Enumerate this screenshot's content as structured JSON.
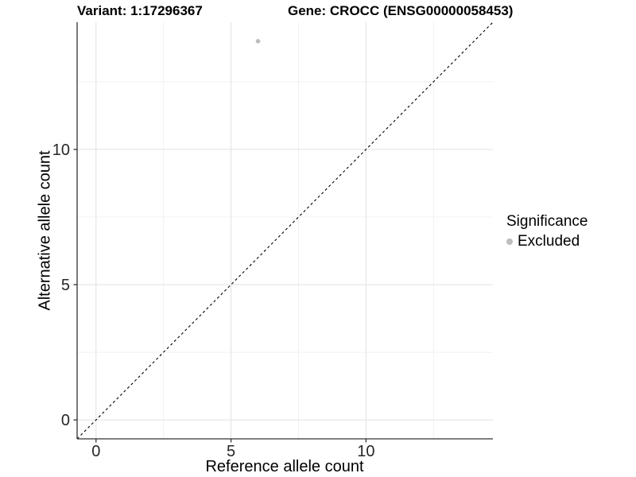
{
  "title": {
    "variant": "Variant: 1:17296367",
    "gene": "Gene: CROCC (ENSG00000058453)"
  },
  "axes": {
    "x_label": "Reference allele count",
    "y_label": "Alternative allele count"
  },
  "legend": {
    "title": "Significance",
    "items": [
      {
        "label": "Excluded",
        "color": "#bdbdbd"
      }
    ]
  },
  "colors": {
    "background": "#ffffff",
    "grid_major": "#e4e4e4",
    "grid_minor": "#f0f0f0",
    "axis_line": "#333333",
    "tick_label": "#262626",
    "reference_line": "#000000",
    "point": "#bdbdbd"
  },
  "chart_data": {
    "type": "scatter",
    "title": "Variant: 1:17296367   Gene: CROCC (ENSG00000058453)",
    "xlabel": "Reference allele count",
    "ylabel": "Alternative allele count",
    "xlim": [
      -0.7,
      14.7
    ],
    "ylim": [
      -0.7,
      14.7
    ],
    "x_major_ticks": [
      0,
      5,
      10
    ],
    "y_major_ticks": [
      0,
      5,
      10
    ],
    "x_minor_ticks": [
      2.5,
      7.5,
      12.5
    ],
    "y_minor_ticks": [
      2.5,
      7.5,
      12.5
    ],
    "grid": true,
    "legend_position": "right",
    "series": [
      {
        "name": "Excluded",
        "color": "#bdbdbd",
        "points": [
          {
            "x": 6,
            "y": 14
          }
        ]
      }
    ],
    "reference_line": {
      "type": "identity",
      "style": "dashed",
      "from": [
        -0.7,
        -0.7
      ],
      "to": [
        14.7,
        14.7
      ],
      "color": "#000000"
    }
  }
}
